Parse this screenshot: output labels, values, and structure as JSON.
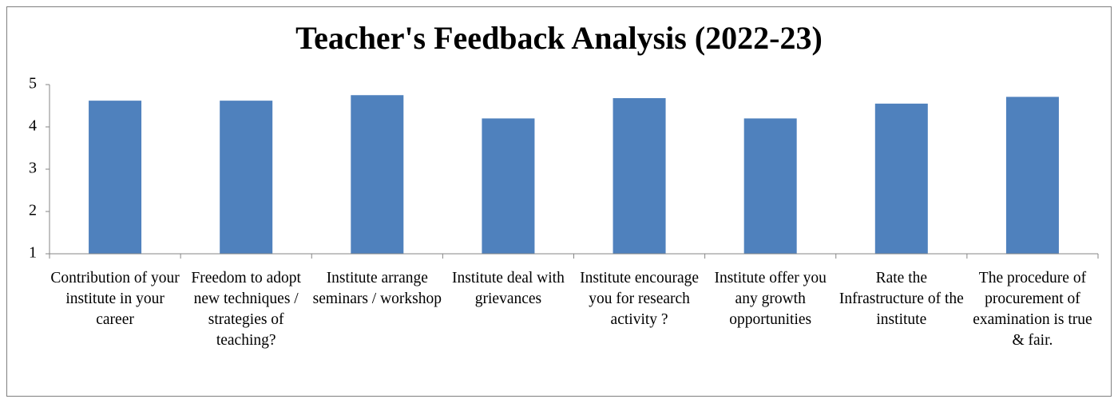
{
  "chart_data": {
    "type": "bar",
    "title": "Teacher's Feedback Analysis (2022-23)",
    "categories": [
      "Contribution of your institute in your career",
      "Freedom to adopt new techniques / strategies of teaching?",
      "Institute arrange seminars / workshop",
      "Institute deal with grievances",
      "Institute encourage you for research activity ?",
      "Institute offer you any growth opportunities",
      "Rate the Infrastructure of the institute",
      "The procedure of procurement of examination is true & fair."
    ],
    "values": [
      4.62,
      4.62,
      4.75,
      4.2,
      4.68,
      4.2,
      4.55,
      4.71
    ],
    "color": "#4f81bd",
    "ylim": [
      1,
      5
    ],
    "yticks": [
      1,
      2,
      3,
      4,
      5
    ],
    "grid": false
  }
}
